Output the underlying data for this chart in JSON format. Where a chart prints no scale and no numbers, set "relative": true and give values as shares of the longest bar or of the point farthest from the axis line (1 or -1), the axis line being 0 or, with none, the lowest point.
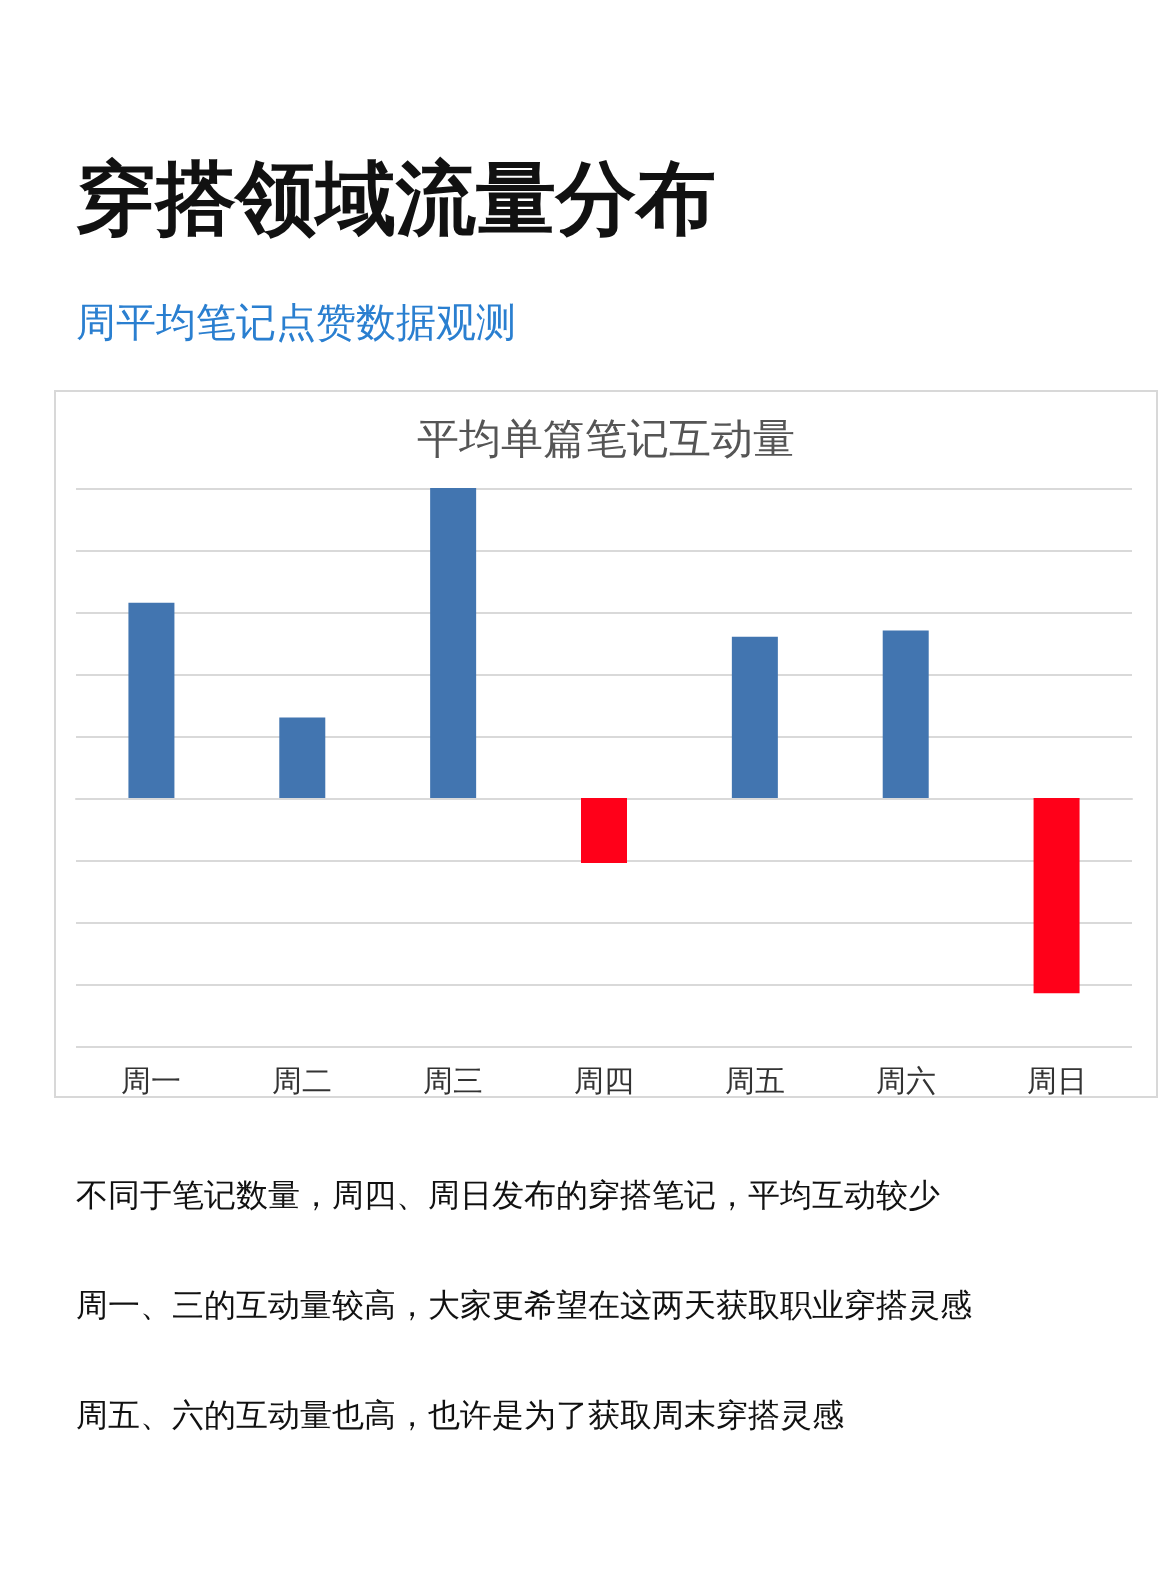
{
  "chart_data": {
    "type": "bar",
    "title": "平均单篇笔记互动量",
    "categories": [
      "周一",
      "周二",
      "周三",
      "周四",
      "周五",
      "周六",
      "周日"
    ],
    "values": [
      0.63,
      0.26,
      1,
      -0.21,
      0.52,
      0.54,
      -0.63
    ],
    "colors": [
      "#4275b0",
      "#4275b0",
      "#4275b0",
      "#ff0019",
      "#4275b0",
      "#4275b0",
      "#ff0019"
    ],
    "relative": true,
    "grid": "y",
    "annotations": [
      "穿搭领域流量分布",
      "周平均笔记点赞数据观测",
      "不同于笔记数量，周四、周日发布的穿搭笔记，平均互动较少",
      "周一、三的互动量较高，大家更希望在这两天获取职业穿搭灵感",
      "周五、六的互动量也高，也许是为了获取周末穿搭灵感"
    ]
  }
}
